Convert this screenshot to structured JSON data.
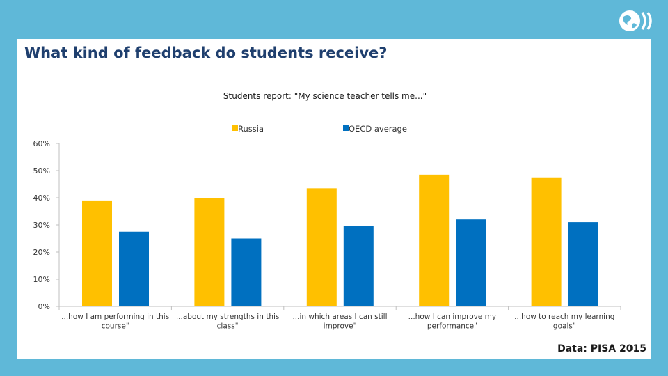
{
  "slide": {
    "title": "What kind of feedback do students receive?",
    "source": "Data: PISA 2015",
    "logo_icon": "globe-logo-icon"
  },
  "colors": {
    "background": "#5fb8d8",
    "title": "#1f3f6e",
    "russia": "#ffc000",
    "oecd": "#0070c0"
  },
  "chart_data": {
    "type": "bar",
    "title": "Students report: \"My science teacher tells me...\"",
    "categories": [
      "...how I am performing in this course\"",
      "...about my strengths in this class\"",
      "...in which areas I can still improve\"",
      "...how I can improve my performance\"",
      "...how to reach my learning goals\""
    ],
    "series": [
      {
        "name": "Russia",
        "color": "#ffc000",
        "values": [
          39,
          40,
          43.5,
          48.5,
          47.5
        ]
      },
      {
        "name": "OECD average",
        "color": "#0070c0",
        "values": [
          27.5,
          25,
          29.5,
          32,
          31
        ]
      }
    ],
    "ylim": [
      0,
      60
    ],
    "yticks": [
      "0%",
      "10%",
      "20%",
      "30%",
      "40%",
      "50%",
      "60%"
    ],
    "ytick_values": [
      0,
      10,
      20,
      30,
      40,
      50,
      60
    ],
    "grid": false,
    "legend_position": "top"
  }
}
